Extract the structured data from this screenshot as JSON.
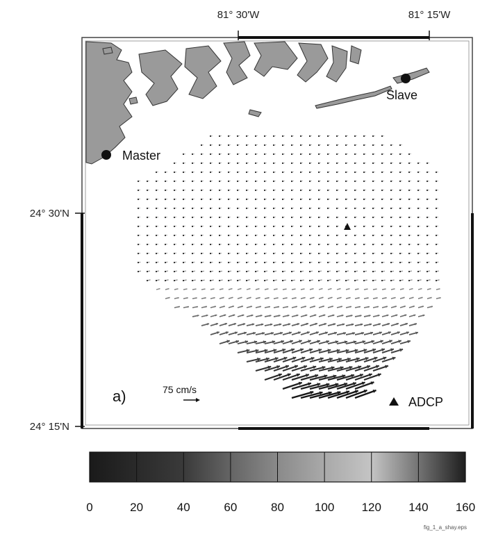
{
  "map": {
    "lon_labels": [
      "81° 30'W",
      "81° 15'W"
    ],
    "lat_labels": [
      "24° 30'N",
      "24° 15'N"
    ],
    "panel_label": "a)",
    "stations": {
      "master": "Master",
      "slave": "Slave"
    },
    "adcp_label": "ADCP",
    "scale_label": "75 cm/s",
    "land_color": "#9a9a9a",
    "field_color": "#1a1a1a"
  },
  "colorbar": {
    "ticks": [
      "0",
      "20",
      "40",
      "60",
      "80",
      "100",
      "120",
      "140",
      "160"
    ],
    "range": [
      0,
      160
    ]
  },
  "footer": {
    "filename": "fig_1_a_shay.eps"
  }
}
